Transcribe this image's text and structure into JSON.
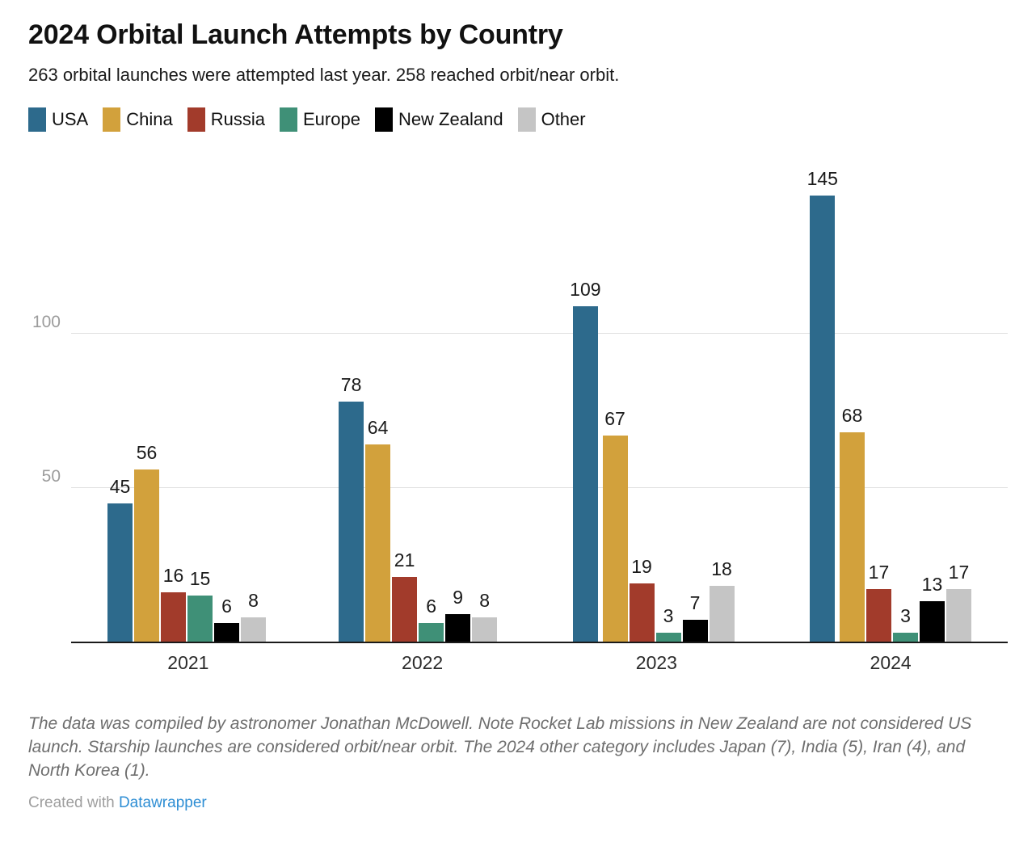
{
  "header": {
    "title": "2024 Orbital Launch Attempts by Country",
    "subtitle": "263 orbital launches were attempted last year. 258 reached orbit/near orbit."
  },
  "chart_data": {
    "type": "bar",
    "title": "2024 Orbital Launch Attempts by Country",
    "categories": [
      "2021",
      "2022",
      "2023",
      "2024"
    ],
    "series": [
      {
        "name": "USA",
        "color": "#2d6a8c",
        "values": [
          45,
          78,
          109,
          145
        ]
      },
      {
        "name": "China",
        "color": "#d2a13c",
        "values": [
          56,
          64,
          67,
          68
        ]
      },
      {
        "name": "Russia",
        "color": "#a23b2b",
        "values": [
          16,
          21,
          19,
          17
        ]
      },
      {
        "name": "Europe",
        "color": "#3f9077",
        "values": [
          15,
          6,
          3,
          3
        ]
      },
      {
        "name": "New Zealand",
        "color": "#000000",
        "values": [
          6,
          9,
          7,
          13
        ]
      },
      {
        "name": "Other",
        "color": "#c5c5c5",
        "values": [
          8,
          8,
          18,
          17
        ]
      }
    ],
    "xlabel": "",
    "ylabel": "",
    "y_ticks": [
      50,
      100
    ],
    "ylim": [
      0,
      150
    ],
    "grid": "horizontal-only",
    "gridline_color": "#e0e0e0",
    "axis_line_color": "#1a1a1a",
    "tick_label_color": "#9c9c9c",
    "legend_position": "top",
    "value_labels": true
  },
  "footer": {
    "note": "The data was compiled by astronomer Jonathan McDowell. Note Rocket Lab missions in New Zealand are not considered US launch. Starship launches are considered orbit/near orbit. The 2024 other category includes Japan (7), India (5), Iran (4), and North Korea (1).",
    "credit_prefix": "Created with ",
    "credit_link_label": "Datawrapper"
  }
}
